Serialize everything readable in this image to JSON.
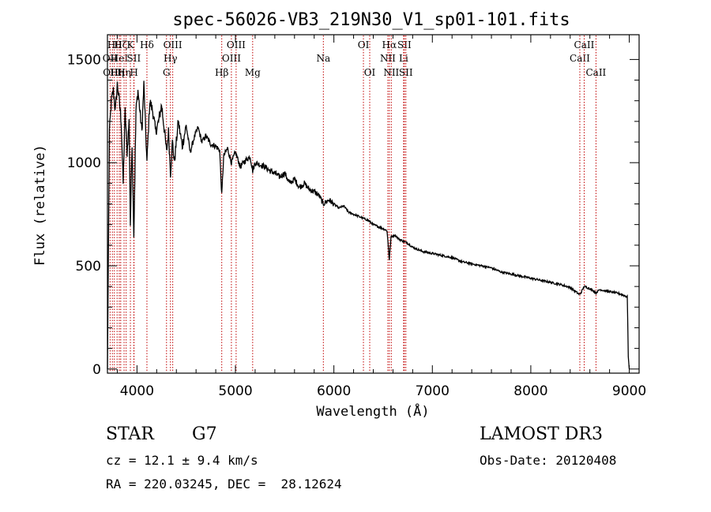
{
  "chart_data": {
    "type": "line",
    "title": "spec-56026-VB3_219N30_V1_sp01-101.fits",
    "xlabel": "Wavelength (Å)",
    "ylabel": "Flux (relative)",
    "xlim": [
      3700,
      9100
    ],
    "ylim": [
      -20,
      1620
    ],
    "xticks": [
      4000,
      5000,
      6000,
      7000,
      8000,
      9000
    ],
    "yticks": [
      0,
      500,
      1000,
      1500
    ],
    "series": [
      {
        "name": "spectrum",
        "x": [
          3700,
          3720,
          3740,
          3760,
          3780,
          3800,
          3820,
          3840,
          3860,
          3880,
          3900,
          3920,
          3933,
          3950,
          3968,
          3990,
          4010,
          4030,
          4050,
          4070,
          4101,
          4130,
          4160,
          4190,
          4220,
          4250,
          4280,
          4300,
          4320,
          4340,
          4360,
          4380,
          4420,
          4460,
          4500,
          4540,
          4580,
          4620,
          4660,
          4700,
          4750,
          4800,
          4840,
          4861,
          4880,
          4920,
          4960,
          5000,
          5050,
          5100,
          5150,
          5175,
          5200,
          5250,
          5300,
          5350,
          5400,
          5450,
          5500,
          5550,
          5600,
          5650,
          5700,
          5750,
          5800,
          5850,
          5893,
          5950,
          6000,
          6050,
          6100,
          6150,
          6200,
          6250,
          6300,
          6350,
          6400,
          6450,
          6500,
          6540,
          6563,
          6580,
          6620,
          6660,
          6700,
          6750,
          6800,
          6900,
          7000,
          7100,
          7200,
          7300,
          7400,
          7500,
          7600,
          7700,
          7800,
          7900,
          8000,
          8100,
          8200,
          8300,
          8400,
          8498,
          8542,
          8600,
          8662,
          8700,
          8800,
          8900,
          8980,
          8990,
          9000
        ],
        "y": [
          0,
          1150,
          1300,
          1350,
          1250,
          1380,
          1300,
          1200,
          900,
          1250,
          1050,
          1200,
          700,
          1100,
          650,
          1250,
          1350,
          1250,
          1150,
          1380,
          1000,
          1300,
          1250,
          1150,
          1200,
          1280,
          1150,
          1050,
          1150,
          950,
          1100,
          1000,
          1200,
          1080,
          1180,
          1050,
          1120,
          1170,
          1100,
          1130,
          1090,
          1080,
          1060,
          840,
          1030,
          1070,
          1000,
          1050,
          980,
          1010,
          1030,
          960,
          1000,
          990,
          980,
          960,
          950,
          930,
          950,
          900,
          920,
          880,
          900,
          870,
          860,
          840,
          800,
          820,
          800,
          780,
          790,
          760,
          750,
          740,
          730,
          720,
          700,
          690,
          680,
          670,
          530,
          640,
          650,
          630,
          620,
          610,
          590,
          570,
          560,
          550,
          540,
          520,
          510,
          500,
          490,
          470,
          460,
          450,
          440,
          430,
          420,
          410,
          395,
          360,
          400,
          390,
          370,
          385,
          375,
          365,
          350,
          60,
          0
        ]
      }
    ],
    "line_markers": [
      {
        "wl": 3727,
        "label": "OII",
        "row": 2
      },
      {
        "wl": 3750,
        "label": "OIII",
        "row": 3
      },
      {
        "wl": 3770,
        "label": "Hθ",
        "row": 1
      },
      {
        "wl": 3798,
        "label": "Hη",
        "row": 3
      },
      {
        "wl": 3820,
        "label": "HeI",
        "row": 2
      },
      {
        "wl": 3835,
        "label": "Hζ",
        "row": 1
      },
      {
        "wl": 3869,
        "label": "Hη",
        "row": 3
      },
      {
        "wl": 3890,
        "label": "",
        "row": 0
      },
      {
        "wl": 3933,
        "label": "K",
        "row": 1
      },
      {
        "wl": 3968,
        "label": "SII",
        "row": 2
      },
      {
        "wl": 3970,
        "label": "H",
        "row": 3
      },
      {
        "wl": 4101,
        "label": "Hδ",
        "row": 1
      },
      {
        "wl": 4300,
        "label": "G",
        "row": 3
      },
      {
        "wl": 4340,
        "label": "Hγ",
        "row": 2
      },
      {
        "wl": 4363,
        "label": "OIII",
        "row": 1
      },
      {
        "wl": 4861,
        "label": "Hβ",
        "row": 3
      },
      {
        "wl": 4959,
        "label": "OIII",
        "row": 2
      },
      {
        "wl": 5007,
        "label": "OIII",
        "row": 1
      },
      {
        "wl": 5175,
        "label": "Mg",
        "row": 3
      },
      {
        "wl": 5893,
        "label": "Na",
        "row": 2
      },
      {
        "wl": 6300,
        "label": "OI",
        "row": 1
      },
      {
        "wl": 6364,
        "label": "OI",
        "row": 3
      },
      {
        "wl": 6548,
        "label": "NII",
        "row": 2
      },
      {
        "wl": 6563,
        "label": "Hα",
        "row": 1
      },
      {
        "wl": 6583,
        "label": "NII",
        "row": 3
      },
      {
        "wl": 6708,
        "label": "Li",
        "row": 2
      },
      {
        "wl": 6716,
        "label": "SII",
        "row": 1
      },
      {
        "wl": 6731,
        "label": "SII",
        "row": 3
      },
      {
        "wl": 8498,
        "label": "CaII",
        "row": 2
      },
      {
        "wl": 8542,
        "label": "CaII",
        "row": 1
      },
      {
        "wl": 8662,
        "label": "CaII",
        "row": 3
      }
    ]
  },
  "info": {
    "class_label": "STAR",
    "subclass": "G7",
    "cz_line": "cz = 12.1 ± 9.4 km/s",
    "radec_line": "RA = 220.03245, DEC =  28.12624",
    "survey": "LAMOST DR3",
    "obs_date": "Obs-Date: 20120408"
  }
}
